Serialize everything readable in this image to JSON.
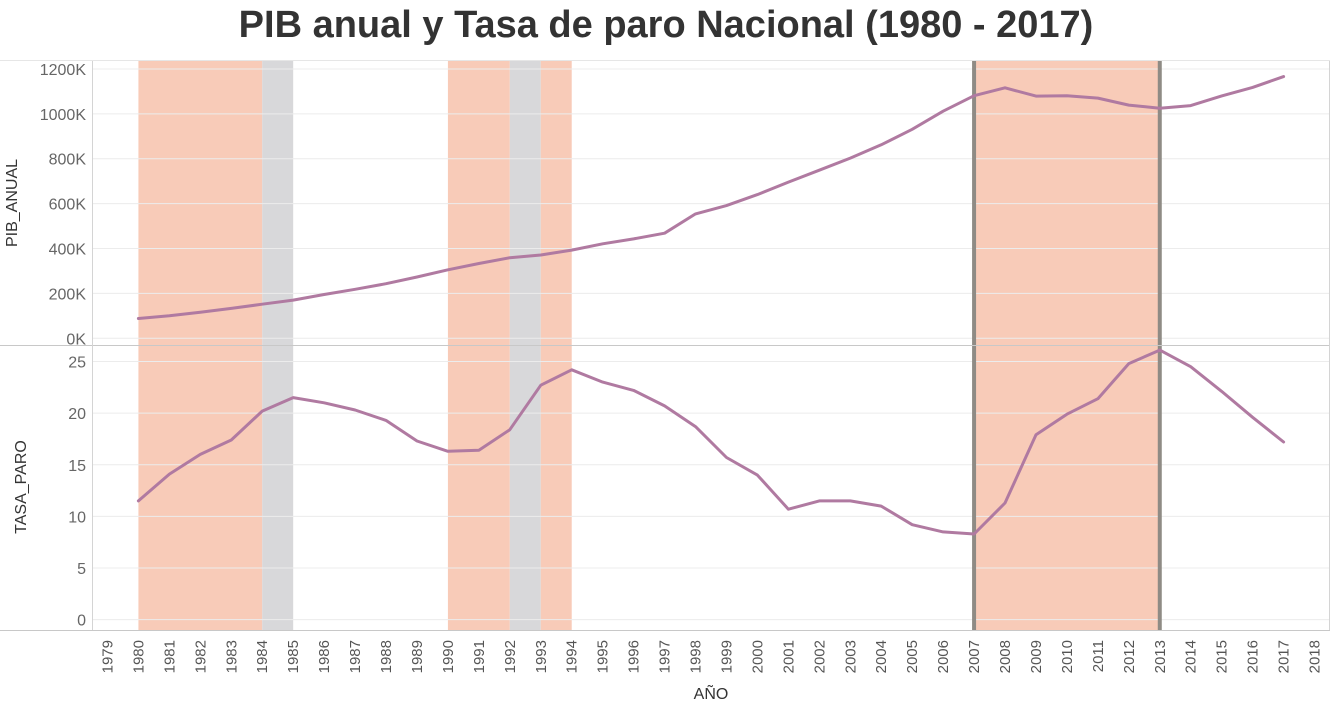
{
  "chart_data": {
    "type": "line",
    "title": "PIB anual y Tasa de paro Nacional (1980 - 2017)",
    "xlabel": "AÑO",
    "x_ticks": [
      1979,
      1980,
      1981,
      1982,
      1983,
      1984,
      1985,
      1986,
      1987,
      1988,
      1989,
      1990,
      1991,
      1992,
      1993,
      1994,
      1995,
      1996,
      1997,
      1998,
      1999,
      2000,
      2001,
      2002,
      2003,
      2004,
      2005,
      2006,
      2007,
      2008,
      2009,
      2010,
      2011,
      2012,
      2013,
      2014,
      2015,
      2016,
      2017,
      2018
    ],
    "xlim": [
      1979,
      2018
    ],
    "color": "#b07aa1",
    "band_colors": {
      "orange": "#f8cbb8",
      "gray": "#d8d8da"
    },
    "bands": [
      {
        "from": 1980,
        "to": 1984,
        "color": "orange"
      },
      {
        "from": 1984,
        "to": 1985,
        "color": "gray"
      },
      {
        "from": 1990,
        "to": 1992,
        "color": "orange"
      },
      {
        "from": 1992,
        "to": 1993,
        "color": "gray"
      },
      {
        "from": 1993,
        "to": 1994,
        "color": "orange"
      },
      {
        "from": 2007,
        "to": 2013,
        "color": "orange"
      }
    ],
    "reference_lines": [
      2007,
      2013
    ],
    "panels": [
      {
        "ylabel": "PIB_ANUAL",
        "ylim": [
          -30000,
          1240000
        ],
        "y_ticks": [
          0,
          200000,
          400000,
          600000,
          800000,
          1000000,
          1200000
        ],
        "y_tick_labels": [
          "0K",
          "200K",
          "400K",
          "600K",
          "800K",
          "1000K",
          "1200K"
        ],
        "series": [
          {
            "x": [
              1980,
              1981,
              1982,
              1983,
              1984,
              1985,
              1986,
              1987,
              1988,
              1989,
              1990,
              1991,
              1992,
              1993,
              1994,
              1995,
              1996,
              1997,
              1998,
              1999,
              2000,
              2001,
              2002,
              2003,
              2004,
              2005,
              2006,
              2007,
              2008,
              2009,
              2010,
              2011,
              2012,
              2013,
              2014,
              2015,
              2016,
              2017
            ],
            "values": [
              88000,
              100000,
              116000,
              133000,
              152000,
              170000,
              195000,
              218000,
              243000,
              273000,
              305000,
              333000,
              359000,
              371000,
              393000,
              421000,
              443000,
              468000,
              554000,
              591000,
              640000,
              696000,
              749000,
              803000,
              862000,
              931000,
              1012000,
              1081000,
              1116000,
              1079000,
              1081000,
              1070000,
              1039000,
              1025000,
              1037000,
              1080000,
              1118000,
              1166000
            ]
          }
        ]
      },
      {
        "ylabel": "TASA_PARO",
        "ylim": [
          -1,
          26.5
        ],
        "y_ticks": [
          0,
          5,
          10,
          15,
          20,
          25
        ],
        "y_tick_labels": [
          "0",
          "5",
          "10",
          "15",
          "20",
          "25"
        ],
        "series": [
          {
            "x": [
              1980,
              1981,
              1982,
              1983,
              1984,
              1985,
              1986,
              1987,
              1988,
              1989,
              1990,
              1991,
              1992,
              1993,
              1994,
              1995,
              1996,
              1997,
              1998,
              1999,
              2000,
              2001,
              2002,
              2003,
              2004,
              2005,
              2006,
              2007,
              2008,
              2009,
              2010,
              2011,
              2012,
              2013,
              2014,
              2015,
              2016,
              2017
            ],
            "values": [
              11.5,
              14.1,
              16.0,
              17.4,
              20.2,
              21.5,
              21.0,
              20.3,
              19.3,
              17.3,
              16.3,
              16.4,
              18.4,
              22.7,
              24.2,
              23.0,
              22.2,
              20.7,
              18.7,
              15.7,
              14.0,
              10.7,
              11.5,
              11.5,
              11.0,
              9.2,
              8.5,
              8.3,
              11.3,
              17.9,
              19.9,
              21.4,
              24.8,
              26.1,
              24.5,
              22.1,
              19.6,
              17.2
            ]
          }
        ]
      }
    ]
  }
}
